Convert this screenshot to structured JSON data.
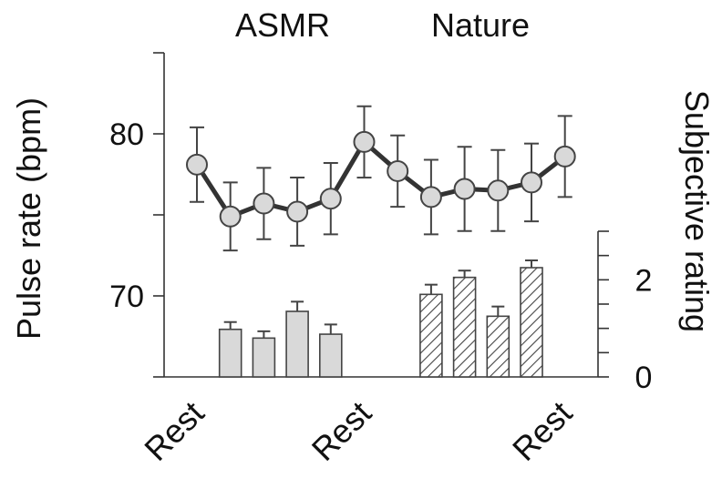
{
  "chart_data": {
    "type": "line",
    "group_labels": [
      "ASMR",
      "Nature"
    ],
    "x_tick_labels": [
      "Rest",
      "Rest",
      "Rest"
    ],
    "left_axis": {
      "label": "Pulse rate (bpm)",
      "ticks": [
        70,
        80
      ],
      "range": [
        65,
        85
      ]
    },
    "right_axis": {
      "label": "Subjective rating",
      "ticks": [
        0,
        2
      ],
      "range": [
        0,
        3
      ]
    },
    "series": [
      {
        "kind": "line",
        "axis": "left",
        "positions": [
          0,
          1,
          2,
          3,
          4,
          5,
          6,
          7,
          8,
          9,
          10,
          11
        ],
        "values": [
          78.1,
          74.9,
          75.7,
          75.2,
          76.0,
          79.5,
          77.7,
          76.1,
          76.6,
          76.5,
          77.0,
          78.6
        ],
        "errors": [
          2.3,
          2.1,
          2.2,
          2.1,
          2.2,
          2.2,
          2.2,
          2.3,
          2.6,
          2.5,
          2.4,
          2.5
        ]
      },
      {
        "kind": "bar",
        "axis": "right",
        "style": "solid",
        "positions": [
          1,
          2,
          3,
          4
        ],
        "values": [
          0.98,
          0.8,
          1.35,
          0.88
        ],
        "errors": [
          0.15,
          0.14,
          0.2,
          0.2
        ]
      },
      {
        "kind": "bar",
        "axis": "right",
        "style": "hatched",
        "positions": [
          7,
          8,
          9,
          10
        ],
        "values": [
          1.7,
          2.05,
          1.25,
          2.25
        ],
        "errors": [
          0.2,
          0.14,
          0.2,
          0.15
        ]
      }
    ],
    "x_tick_positions": [
      0,
      5,
      11
    ],
    "grid": false,
    "legend": "none"
  }
}
